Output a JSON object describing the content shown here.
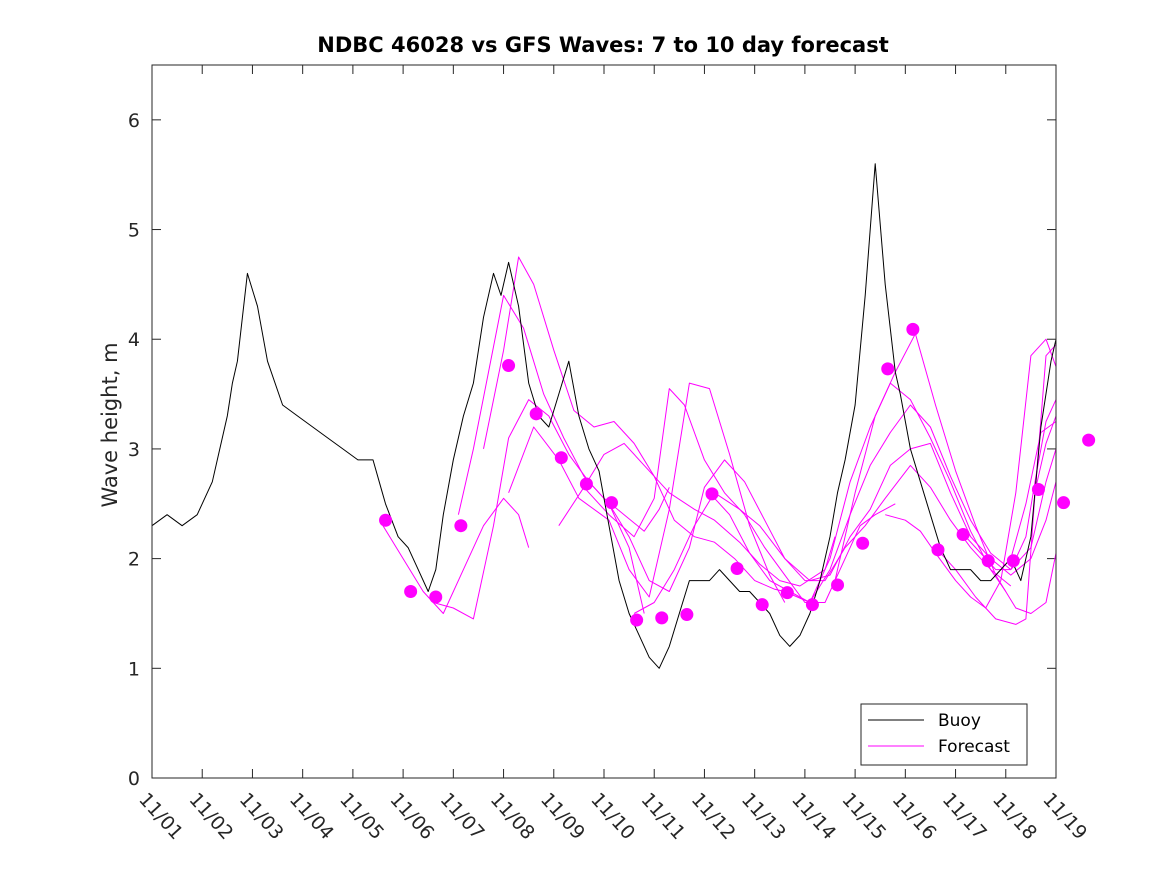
{
  "chart_data": {
    "type": "line",
    "title": "NDBC 46028 vs GFS Waves: 7 to 10 day forecast",
    "xlabel": "",
    "ylabel": "Wave height, m",
    "xlim": [
      0,
      18
    ],
    "ylim": [
      0,
      6.5
    ],
    "x_ticks": [
      0,
      1,
      2,
      3,
      4,
      5,
      6,
      7,
      8,
      9,
      10,
      11,
      12,
      13,
      14,
      15,
      16,
      17,
      18
    ],
    "x_tick_labels": [
      "11/01",
      "11/02",
      "11/03",
      "11/04",
      "11/05",
      "11/06",
      "11/07",
      "11/08",
      "11/09",
      "11/10",
      "11/11",
      "11/12",
      "11/13",
      "11/14",
      "11/15",
      "11/16",
      "11/17",
      "11/18",
      "11/19"
    ],
    "y_ticks": [
      0,
      1,
      2,
      3,
      4,
      5,
      6
    ],
    "y_tick_labels": [
      "0",
      "1",
      "2",
      "3",
      "4",
      "5",
      "6"
    ],
    "legend": {
      "placement": "bottom-right",
      "entries": [
        "Buoy",
        "Forecast"
      ]
    },
    "colors": {
      "buoy": "#000000",
      "forecast": "#ff00ff"
    },
    "series": [
      {
        "name": "Buoy",
        "x": [
          0,
          0.3,
          0.6,
          0.9,
          1.2,
          1.35,
          1.5,
          1.6,
          1.7,
          1.9,
          2.1,
          2.3,
          2.6,
          2.9,
          3.2,
          3.5,
          3.8,
          4.1,
          4.4,
          4.65,
          4.9,
          5.1,
          5.3,
          5.5,
          5.65,
          5.8,
          6.0,
          6.2,
          6.4,
          6.6,
          6.8,
          6.95,
          7.1,
          7.3,
          7.5,
          7.7,
          7.9,
          8.1,
          8.3,
          8.5,
          8.7,
          8.9,
          9.1,
          9.3,
          9.5,
          9.7,
          9.9,
          10.1,
          10.3,
          10.5,
          10.7,
          10.9,
          11.1,
          11.3,
          11.5,
          11.7,
          11.9,
          12.1,
          12.3,
          12.5,
          12.7,
          12.9,
          13.1,
          13.3,
          13.5,
          13.65,
          13.8,
          14.0,
          14.2,
          14.4,
          14.6,
          14.8,
          14.9,
          15.1,
          15.3,
          15.5,
          15.7,
          15.9,
          16.1,
          16.3,
          16.5,
          16.7,
          16.9,
          17.1,
          17.3,
          17.5,
          17.7,
          17.9,
          18.0
        ],
        "values": [
          2.3,
          2.4,
          2.3,
          2.4,
          2.7,
          3.0,
          3.3,
          3.6,
          3.8,
          4.6,
          4.3,
          3.8,
          3.4,
          3.3,
          3.2,
          3.1,
          3.0,
          2.9,
          2.9,
          2.5,
          2.2,
          2.1,
          1.9,
          1.7,
          1.9,
          2.4,
          2.9,
          3.3,
          3.6,
          4.2,
          4.6,
          4.4,
          4.7,
          4.3,
          3.6,
          3.3,
          3.2,
          3.5,
          3.8,
          3.3,
          3.0,
          2.8,
          2.3,
          1.8,
          1.5,
          1.3,
          1.1,
          1.0,
          1.2,
          1.5,
          1.8,
          1.8,
          1.8,
          1.9,
          1.8,
          1.7,
          1.7,
          1.6,
          1.5,
          1.3,
          1.2,
          1.3,
          1.5,
          1.8,
          2.2,
          2.6,
          2.9,
          3.4,
          4.4,
          5.6,
          4.5,
          3.7,
          3.5,
          3.0,
          2.7,
          2.4,
          2.1,
          1.9,
          1.9,
          1.9,
          1.8,
          1.8,
          1.9,
          2.0,
          1.8,
          2.2,
          3.2,
          3.8,
          4.0
        ]
      },
      {
        "name": "Forecast",
        "x": [
          4.6,
          5.0,
          5.4,
          5.8,
          6.2,
          6.6,
          7.0,
          7.3,
          7.5
        ],
        "values": [
          2.3,
          2.0,
          1.7,
          1.5,
          1.9,
          2.3,
          2.55,
          2.4,
          2.1
        ]
      },
      {
        "name": "Forecast",
        "x": [
          5.6,
          6.0,
          6.4,
          6.8,
          7.1,
          7.5,
          7.9,
          8.3,
          8.7,
          9.1,
          9.5,
          9.8
        ],
        "values": [
          1.6,
          1.55,
          1.45,
          2.3,
          3.1,
          3.45,
          3.3,
          2.95,
          2.7,
          2.5,
          2.1,
          1.5
        ]
      },
      {
        "name": "Forecast",
        "x": [
          6.1,
          6.4,
          6.7,
          7.0,
          7.4,
          7.8,
          8.2,
          8.6,
          9.0,
          9.4,
          9.8,
          10.1,
          10.3
        ],
        "values": [
          2.4,
          3.0,
          3.7,
          4.4,
          4.1,
          3.5,
          3.1,
          2.75,
          2.55,
          2.4,
          2.25,
          2.45,
          2.65
        ]
      },
      {
        "name": "Forecast",
        "x": [
          6.6,
          7.0,
          7.3,
          7.6,
          8.0,
          8.4,
          8.8,
          9.2,
          9.6,
          10.0,
          10.4,
          10.8,
          11.2,
          11.6,
          12.0,
          12.4,
          12.6
        ],
        "values": [
          3.0,
          3.9,
          4.75,
          4.5,
          3.9,
          3.35,
          3.2,
          3.25,
          3.05,
          2.75,
          2.35,
          2.2,
          2.15,
          2.0,
          1.8,
          1.72,
          1.7
        ]
      },
      {
        "name": "Forecast",
        "x": [
          7.1,
          7.6,
          8.1,
          8.5,
          9.1,
          9.5,
          9.9,
          10.3,
          10.7,
          11.1,
          11.5,
          11.9,
          12.3,
          12.6
        ],
        "values": [
          2.6,
          3.2,
          2.9,
          2.55,
          2.35,
          1.9,
          1.65,
          2.45,
          3.6,
          3.55,
          2.95,
          2.3,
          1.85,
          1.6
        ]
      },
      {
        "name": "Forecast",
        "x": [
          8.1,
          8.6,
          9.0,
          9.4,
          9.8,
          10.3,
          10.8,
          11.2,
          11.7,
          12.1,
          12.5,
          12.9,
          13.4,
          13.6
        ],
        "values": [
          2.3,
          2.65,
          2.95,
          3.05,
          2.85,
          2.6,
          2.45,
          2.35,
          2.15,
          1.95,
          1.8,
          1.75,
          1.9,
          2.2
        ]
      },
      {
        "name": "Forecast",
        "x": [
          8.6,
          9.1,
          9.6,
          10.0,
          10.3,
          10.6,
          11.0,
          11.4,
          11.8,
          12.2,
          12.6,
          13.0,
          13.4,
          13.8,
          14.1,
          14.4,
          14.8
        ],
        "values": [
          2.65,
          2.4,
          2.2,
          2.55,
          3.55,
          3.4,
          2.9,
          2.6,
          2.4,
          2.1,
          1.85,
          1.6,
          1.6,
          2.0,
          2.3,
          2.4,
          2.5
        ]
      },
      {
        "name": "Forecast",
        "x": [
          9.1,
          9.5,
          9.9,
          10.3,
          10.7,
          11.0,
          11.4,
          11.8,
          12.2,
          12.6,
          13.0,
          13.4,
          13.8,
          14.2,
          14.6,
          15.1,
          15.5,
          15.9,
          16.3,
          16.7,
          17.1
        ],
        "values": [
          2.5,
          2.2,
          1.8,
          1.7,
          2.1,
          2.65,
          2.9,
          2.7,
          2.35,
          2.0,
          1.8,
          1.8,
          2.1,
          2.3,
          2.55,
          2.85,
          2.65,
          2.35,
          2.1,
          1.9,
          1.75
        ]
      },
      {
        "name": "Forecast",
        "x": [
          9.6,
          10.0,
          10.4,
          10.8,
          11.2,
          11.7,
          12.1,
          12.6,
          13.1,
          13.5,
          13.9,
          14.3,
          14.7,
          15.1,
          15.5,
          15.9,
          16.3,
          16.7,
          17.1,
          17.5,
          17.8,
          18.0
        ],
        "values": [
          1.5,
          1.6,
          1.9,
          2.3,
          2.6,
          2.45,
          2.3,
          2.0,
          1.8,
          1.85,
          2.2,
          2.45,
          2.85,
          3.0,
          3.05,
          2.6,
          2.2,
          2.0,
          1.85,
          2.0,
          2.35,
          2.7
        ]
      },
      {
        "name": "Forecast",
        "x": [
          11.1,
          11.5,
          11.9,
          12.3,
          12.7,
          13.1,
          13.5,
          13.9,
          14.3,
          14.7,
          15.1,
          15.5,
          15.9,
          16.3,
          16.7,
          17.1,
          17.5,
          17.8,
          18.0
        ],
        "values": [
          2.6,
          2.4,
          2.05,
          1.8,
          1.7,
          1.6,
          1.9,
          2.4,
          2.85,
          3.15,
          3.4,
          3.2,
          2.75,
          2.35,
          2.05,
          1.9,
          2.1,
          2.7,
          3.0
        ]
      },
      {
        "name": "Forecast",
        "x": [
          12.6,
          13.1,
          13.5,
          13.9,
          14.3,
          14.7,
          15.1,
          15.5,
          15.9,
          16.3,
          16.7,
          17.0
        ],
        "values": [
          1.7,
          1.6,
          2.0,
          2.7,
          3.2,
          3.6,
          3.45,
          3.1,
          2.7,
          2.25,
          1.9,
          1.7
        ]
      },
      {
        "name": "Forecast",
        "x": [
          13.6,
          14.0,
          14.4,
          14.8,
          15.2,
          15.6,
          16.0,
          16.4,
          16.8,
          17.2,
          17.5,
          17.8,
          18.0
        ],
        "values": [
          1.8,
          2.6,
          3.3,
          3.7,
          4.05,
          3.4,
          2.8,
          2.3,
          1.85,
          1.55,
          1.5,
          1.6,
          2.05
        ]
      },
      {
        "name": "Forecast",
        "x": [
          14.6,
          15.0,
          15.3,
          15.6,
          16.0,
          16.3,
          16.6,
          16.9,
          17.2,
          17.5,
          17.8,
          18.0
        ],
        "values": [
          2.4,
          2.35,
          2.25,
          2.05,
          1.8,
          1.65,
          1.55,
          1.8,
          2.6,
          3.85,
          4.0,
          3.75
        ]
      },
      {
        "name": "Forecast",
        "x": [
          15.6,
          16.0,
          16.4,
          16.8,
          17.2,
          17.4,
          17.6,
          17.8,
          18.0
        ],
        "values": [
          2.1,
          1.9,
          1.65,
          1.45,
          1.4,
          1.45,
          2.7,
          3.85,
          3.95
        ]
      },
      {
        "name": "Forecast",
        "x": [
          16.1,
          16.5,
          16.8,
          17.1,
          17.4,
          17.6,
          17.8,
          18.0
        ],
        "values": [
          2.25,
          2.05,
          1.9,
          1.9,
          2.2,
          2.75,
          3.25,
          3.45
        ]
      },
      {
        "name": "Forecast",
        "x": [
          17.1,
          17.4,
          17.7,
          18.0
        ],
        "values": [
          2.0,
          2.5,
          3.15,
          3.25
        ]
      },
      {
        "name": "Forecast",
        "x": [
          17.6,
          17.8,
          18.0
        ],
        "values": [
          2.65,
          3.05,
          3.3
        ]
      }
    ],
    "forecast_markers": {
      "x": [
        4.65,
        5.15,
        5.65,
        6.15,
        7.1,
        7.65,
        8.15,
        8.65,
        9.15,
        9.65,
        10.15,
        10.65,
        11.15,
        11.65,
        12.15,
        12.65,
        13.15,
        13.65,
        14.15,
        14.65,
        15.15,
        15.65,
        16.15,
        16.65,
        17.15,
        17.65,
        18.15,
        18.65
      ],
      "values": [
        2.35,
        1.7,
        1.65,
        2.3,
        3.76,
        3.32,
        2.92,
        2.68,
        2.51,
        1.44,
        1.46,
        1.49,
        2.59,
        1.91,
        1.58,
        1.69,
        1.58,
        1.76,
        2.14,
        3.73,
        4.09,
        2.08,
        2.22,
        1.98,
        1.98,
        2.63,
        2.51,
        3.08
      ]
    }
  }
}
